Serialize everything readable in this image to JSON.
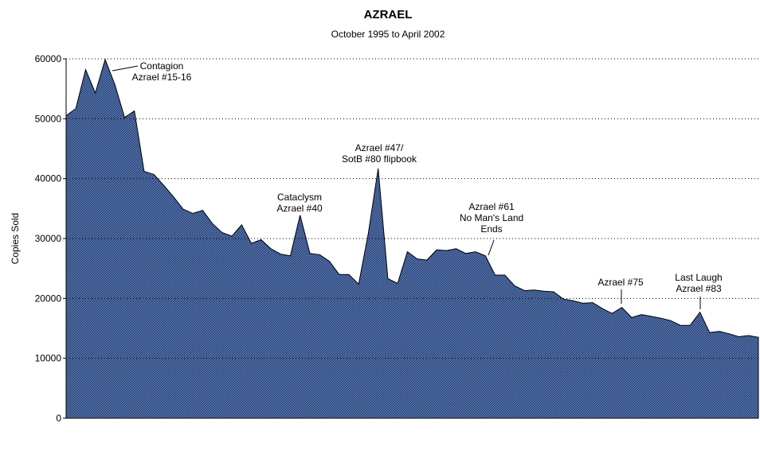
{
  "chart_data": {
    "type": "area",
    "title": "AZRAEL",
    "subtitle": "October 1995 to April 2002",
    "ylabel": "Copies Sold",
    "xlabel": "",
    "ylim": [
      0,
      60000
    ],
    "yticks": [
      "0",
      "10000",
      "20000",
      "30000",
      "40000",
      "50000",
      "60000"
    ],
    "grid": "horizontal dotted",
    "colors": {
      "fill": "#5577aa",
      "stroke": "#000000",
      "grid": "#000000"
    },
    "values": [
      50500,
      51700,
      58200,
      54300,
      59900,
      55700,
      50200,
      51300,
      41200,
      40700,
      38900,
      37000,
      34900,
      34200,
      34700,
      32500,
      31000,
      30400,
      32300,
      29200,
      29800,
      28300,
      27400,
      27100,
      33900,
      27500,
      27300,
      26200,
      24000,
      24000,
      22400,
      30900,
      41700,
      23300,
      22500,
      27800,
      26600,
      26400,
      28100,
      28000,
      28300,
      27500,
      27800,
      27100,
      23900,
      23900,
      22100,
      21300,
      21400,
      21200,
      21100,
      19900,
      19600,
      19200,
      19300,
      18300,
      17500,
      18500,
      16800,
      17300,
      17000,
      16700,
      16300,
      15500,
      15500,
      17700,
      14300,
      14500,
      14100,
      13600,
      13800,
      13500
    ],
    "annotations": [
      {
        "lines": [
          "Contagion",
          "Azrael #15-16"
        ],
        "index": 4
      },
      {
        "lines": [
          "Cataclysm",
          "Azrael #40"
        ],
        "index": 24
      },
      {
        "lines": [
          "Azrael #47/",
          "SotB #80 flipbook"
        ],
        "index": 32
      },
      {
        "lines": [
          "Azrael #61",
          "No Man's Land",
          "Ends"
        ],
        "index": 43
      },
      {
        "lines": [
          "Azrael #75"
        ],
        "index": 57
      },
      {
        "lines": [
          "Last Laugh",
          "Azrael #83"
        ],
        "index": 65
      }
    ]
  }
}
